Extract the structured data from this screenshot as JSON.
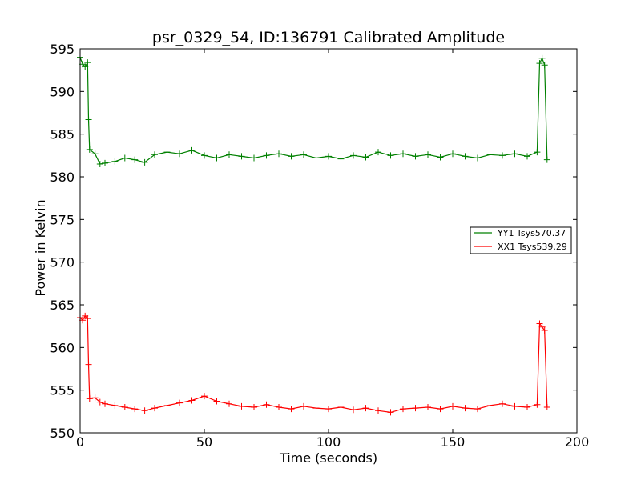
{
  "chart_data": {
    "type": "line",
    "title": "psr_0329_54, ID:136791 Calibrated Amplitude",
    "xlabel": "Time (seconds)",
    "ylabel": "Power in Kelvin",
    "xlim": [
      0,
      200
    ],
    "ylim": [
      550,
      595
    ],
    "xticks": [
      0,
      50,
      100,
      150,
      200
    ],
    "yticks": [
      550,
      555,
      560,
      565,
      570,
      575,
      580,
      585,
      590,
      595
    ],
    "grid": false,
    "legend_position": "right",
    "marker": "+",
    "series": [
      {
        "name": "YY1 Tsys570.37",
        "color": "#008000",
        "points": [
          [
            0,
            594
          ],
          [
            1,
            593.2
          ],
          [
            2,
            592.9
          ],
          [
            3,
            593.4
          ],
          [
            3.4,
            586.7
          ],
          [
            3.8,
            583.2
          ],
          [
            6,
            582.7
          ],
          [
            8,
            581.5
          ],
          [
            10,
            581.6
          ],
          [
            14,
            581.8
          ],
          [
            18,
            582.2
          ],
          [
            22,
            582.0
          ],
          [
            26,
            581.7
          ],
          [
            30,
            582.6
          ],
          [
            35,
            582.9
          ],
          [
            40,
            582.7
          ],
          [
            45,
            583.1
          ],
          [
            50,
            582.5
          ],
          [
            55,
            582.2
          ],
          [
            60,
            582.6
          ],
          [
            65,
            582.4
          ],
          [
            70,
            582.2
          ],
          [
            75,
            582.5
          ],
          [
            80,
            582.7
          ],
          [
            85,
            582.4
          ],
          [
            90,
            582.6
          ],
          [
            95,
            582.2
          ],
          [
            100,
            582.4
          ],
          [
            105,
            582.1
          ],
          [
            110,
            582.5
          ],
          [
            115,
            582.3
          ],
          [
            120,
            582.9
          ],
          [
            125,
            582.5
          ],
          [
            130,
            582.7
          ],
          [
            135,
            582.4
          ],
          [
            140,
            582.6
          ],
          [
            145,
            582.3
          ],
          [
            150,
            582.7
          ],
          [
            155,
            582.4
          ],
          [
            160,
            582.2
          ],
          [
            165,
            582.6
          ],
          [
            170,
            582.5
          ],
          [
            175,
            582.7
          ],
          [
            180,
            582.4
          ],
          [
            184,
            582.9
          ],
          [
            185,
            593.3
          ],
          [
            186,
            593.9
          ],
          [
            187,
            593.1
          ],
          [
            188,
            582.0
          ]
        ]
      },
      {
        "name": "XX1 Tsys539.29",
        "color": "#ff0000",
        "points": [
          [
            0,
            563.5
          ],
          [
            1,
            563.2
          ],
          [
            2,
            563.7
          ],
          [
            3,
            563.4
          ],
          [
            3.4,
            558.0
          ],
          [
            3.8,
            554.0
          ],
          [
            6,
            554.1
          ],
          [
            8,
            553.6
          ],
          [
            10,
            553.4
          ],
          [
            14,
            553.2
          ],
          [
            18,
            553.0
          ],
          [
            22,
            552.8
          ],
          [
            26,
            552.6
          ],
          [
            30,
            552.9
          ],
          [
            35,
            553.2
          ],
          [
            40,
            553.5
          ],
          [
            45,
            553.8
          ],
          [
            50,
            554.3
          ],
          [
            55,
            553.7
          ],
          [
            60,
            553.4
          ],
          [
            65,
            553.1
          ],
          [
            70,
            553.0
          ],
          [
            75,
            553.3
          ],
          [
            80,
            553.0
          ],
          [
            85,
            552.8
          ],
          [
            90,
            553.1
          ],
          [
            95,
            552.9
          ],
          [
            100,
            552.8
          ],
          [
            105,
            553.0
          ],
          [
            110,
            552.7
          ],
          [
            115,
            552.9
          ],
          [
            120,
            552.6
          ],
          [
            125,
            552.4
          ],
          [
            130,
            552.8
          ],
          [
            135,
            552.9
          ],
          [
            140,
            553.0
          ],
          [
            145,
            552.8
          ],
          [
            150,
            553.1
          ],
          [
            155,
            552.9
          ],
          [
            160,
            552.8
          ],
          [
            165,
            553.2
          ],
          [
            170,
            553.4
          ],
          [
            175,
            553.1
          ],
          [
            180,
            553.0
          ],
          [
            184,
            553.3
          ],
          [
            185,
            562.8
          ],
          [
            186,
            562.4
          ],
          [
            187,
            562.0
          ],
          [
            188,
            553.0
          ]
        ]
      }
    ]
  }
}
